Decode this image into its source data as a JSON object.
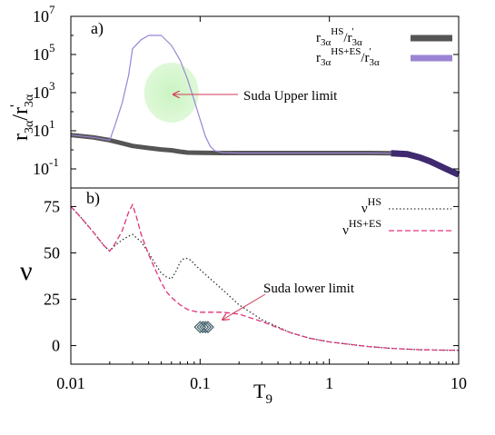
{
  "chart_data": [
    {
      "panel": "a)",
      "type": "line",
      "xscale": "log",
      "yscale": "log",
      "xlim": [
        0.01,
        10
      ],
      "ylim": [
        0.01,
        10000000
      ],
      "ylabel_main": "r",
      "ylabel_sub1": "3α",
      "ylabel_mid": "/r",
      "ylabel_prime": "'",
      "ylabel_sub2": "3α",
      "yticks": [
        {
          "value": 0.1,
          "base": "10",
          "exp": "-1"
        },
        {
          "value": 10,
          "base": "10",
          "exp": "1"
        },
        {
          "value": 1000,
          "base": "10",
          "exp": "3"
        },
        {
          "value": 100000,
          "base": "10",
          "exp": "5"
        },
        {
          "value": 10000000,
          "base": "10",
          "exp": "7"
        }
      ],
      "series": [
        {
          "name": "r3αHS/r'3α",
          "legend_main": "r",
          "legend_sub1": "3α",
          "legend_sup": "HS",
          "legend_mid": "/r",
          "legend_prime": "'",
          "legend_sub2": "3α",
          "color": "#555555",
          "x": [
            0.01,
            0.015,
            0.02,
            0.025,
            0.03,
            0.04,
            0.05,
            0.06,
            0.07,
            0.08,
            0.1,
            0.15,
            0.2,
            0.5,
            1,
            2,
            3,
            4,
            5,
            6,
            8,
            10
          ],
          "y": [
            6,
            4.5,
            3.2,
            2.2,
            1.6,
            1.25,
            1.05,
            0.95,
            0.8,
            0.72,
            0.7,
            0.68,
            0.68,
            0.68,
            0.68,
            0.68,
            0.66,
            0.6,
            0.4,
            0.25,
            0.1,
            0.05
          ]
        },
        {
          "name": "r3αHS+ES/r'3α",
          "legend_main": "r",
          "legend_sub1": "3α",
          "legend_sup": "HS+ES",
          "legend_mid": "/r",
          "legend_prime": "'",
          "legend_sub2": "3α",
          "color": "#9b84d4",
          "x": [
            0.01,
            0.015,
            0.02,
            0.022,
            0.025,
            0.028,
            0.03,
            0.035,
            0.04,
            0.05,
            0.06,
            0.07,
            0.08,
            0.09,
            0.1,
            0.11,
            0.12,
            0.13,
            0.15,
            0.2,
            0.5,
            1,
            2,
            3,
            4,
            5,
            6,
            8,
            10
          ],
          "y": [
            6,
            4.5,
            3.2,
            20,
            300,
            8000,
            200000,
            600000,
            1000000,
            1000000,
            300000,
            50000,
            5000,
            400,
            40,
            5,
            1.5,
            0.9,
            0.72,
            0.68,
            0.68,
            0.68,
            0.68,
            0.66,
            0.6,
            0.4,
            0.25,
            0.1,
            0.05
          ]
        }
      ],
      "annotation": {
        "text": "Suda Upper limit",
        "x": 0.06,
        "y": 1000
      },
      "shaded_region": {
        "x": 0.06,
        "y": 1000,
        "color": "#ccf5c4"
      }
    },
    {
      "panel": "b)",
      "type": "line",
      "xscale": "log",
      "xlim": [
        0.01,
        10
      ],
      "ylim": [
        -10,
        85
      ],
      "xticks": [
        "0.01",
        "0.1",
        "1",
        "10"
      ],
      "xtick_values": [
        0.01,
        0.1,
        1,
        10
      ],
      "yticks": [
        0,
        25,
        50,
        75
      ],
      "ylabel": "ν",
      "xlabel_main": "T",
      "xlabel_sub": "9",
      "series": [
        {
          "name": "νHS",
          "legend_main": "ν",
          "legend_sup": "HS",
          "color": "#333333",
          "style": "dotted",
          "x": [
            0.01,
            0.012,
            0.015,
            0.018,
            0.02,
            0.022,
            0.025,
            0.028,
            0.03,
            0.035,
            0.04,
            0.045,
            0.05,
            0.055,
            0.06,
            0.065,
            0.07,
            0.075,
            0.08,
            0.085,
            0.09,
            0.1,
            0.12,
            0.15,
            0.2,
            0.3,
            0.5,
            0.7,
            1,
            2,
            3,
            5,
            7,
            10
          ],
          "y": [
            75,
            69,
            61,
            54,
            51,
            54,
            57,
            59,
            60,
            56,
            50,
            44,
            39,
            37,
            36,
            40,
            45,
            47,
            47,
            46,
            44,
            41,
            36,
            30,
            22,
            14,
            7,
            4,
            2,
            -0.5,
            -1.5,
            -2.2,
            -2.4,
            -2.5
          ]
        },
        {
          "name": "νHS+ES",
          "legend_main": "ν",
          "legend_sup": "HS+ES",
          "color": "#e0337f",
          "style": "dashed",
          "x": [
            0.01,
            0.012,
            0.015,
            0.018,
            0.02,
            0.022,
            0.025,
            0.028,
            0.03,
            0.032,
            0.035,
            0.04,
            0.045,
            0.05,
            0.055,
            0.06,
            0.07,
            0.08,
            0.09,
            0.1,
            0.12,
            0.15,
            0.2,
            0.3,
            0.5,
            0.7,
            1,
            2,
            3,
            5,
            7,
            10
          ],
          "y": [
            75,
            69,
            61,
            54,
            51,
            55,
            62,
            72,
            76,
            70,
            60,
            49,
            41,
            34,
            29,
            26,
            22,
            19.5,
            18.5,
            18,
            18,
            18,
            17,
            13,
            7,
            4,
            2,
            -0.5,
            -1.5,
            -2.2,
            -2.4,
            -2.5
          ]
        }
      ],
      "annotation": {
        "text": "Suda lower limit",
        "x": 0.12,
        "y": 18
      },
      "markers": {
        "symbol": "diamond",
        "color": "#4a6670",
        "x": [
          0.1,
          0.105,
          0.11,
          0.115
        ],
        "y": [
          10,
          10,
          10,
          10
        ]
      }
    }
  ]
}
